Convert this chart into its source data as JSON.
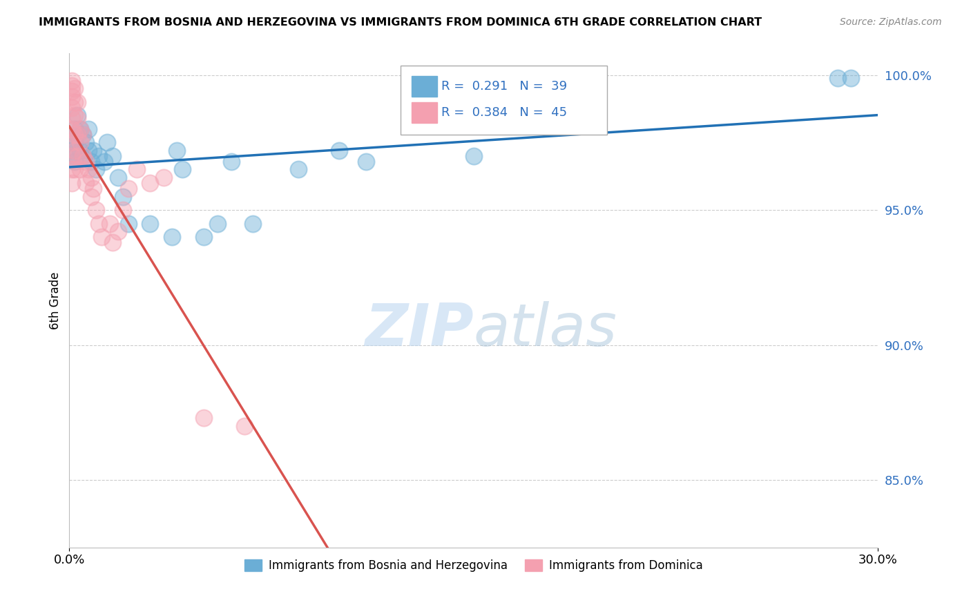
{
  "title": "IMMIGRANTS FROM BOSNIA AND HERZEGOVINA VS IMMIGRANTS FROM DOMINICA 6TH GRADE CORRELATION CHART",
  "source": "Source: ZipAtlas.com",
  "ylabel": "6th Grade",
  "xlim": [
    0.0,
    0.3
  ],
  "ylim": [
    0.825,
    1.008
  ],
  "xticks": [
    0.0,
    0.3
  ],
  "xticklabels": [
    "0.0%",
    "30.0%"
  ],
  "yticks": [
    0.85,
    0.9,
    0.95,
    1.0
  ],
  "yticklabels": [
    "85.0%",
    "90.0%",
    "95.0%",
    "100.0%"
  ],
  "color_blue": "#6BAED6",
  "color_pink": "#F4A0B0",
  "trend_color_blue": "#2171B5",
  "trend_color_pink": "#D9534F",
  "ytick_color": "#3070C0",
  "watermark_color": "#B8D4F0",
  "legend_label1": "Immigrants from Bosnia and Herzegovina",
  "legend_label2": "Immigrants from Dominica",
  "blue_x": [
    0.001,
    0.001,
    0.001,
    0.002,
    0.002,
    0.002,
    0.003,
    0.003,
    0.004,
    0.004,
    0.005,
    0.005,
    0.006,
    0.007,
    0.007,
    0.008,
    0.009,
    0.01,
    0.011,
    0.013,
    0.014,
    0.016,
    0.018,
    0.02,
    0.022,
    0.03,
    0.038,
    0.04,
    0.042,
    0.05,
    0.055,
    0.06,
    0.068,
    0.085,
    0.1,
    0.11,
    0.15,
    0.285,
    0.29
  ],
  "blue_y": [
    0.972,
    0.975,
    0.97,
    0.98,
    0.975,
    0.968,
    0.985,
    0.978,
    0.98,
    0.972,
    0.978,
    0.97,
    0.975,
    0.98,
    0.972,
    0.968,
    0.972,
    0.965,
    0.97,
    0.968,
    0.975,
    0.97,
    0.962,
    0.955,
    0.945,
    0.945,
    0.94,
    0.972,
    0.965,
    0.94,
    0.945,
    0.968,
    0.945,
    0.965,
    0.972,
    0.968,
    0.97,
    0.999,
    0.999
  ],
  "pink_x": [
    0.001,
    0.001,
    0.001,
    0.001,
    0.001,
    0.001,
    0.001,
    0.001,
    0.001,
    0.001,
    0.001,
    0.002,
    0.002,
    0.002,
    0.002,
    0.002,
    0.002,
    0.003,
    0.003,
    0.003,
    0.003,
    0.004,
    0.004,
    0.004,
    0.005,
    0.005,
    0.006,
    0.006,
    0.007,
    0.008,
    0.008,
    0.009,
    0.01,
    0.011,
    0.012,
    0.015,
    0.016,
    0.018,
    0.02,
    0.022,
    0.025,
    0.03,
    0.035,
    0.05,
    0.065
  ],
  "pink_y": [
    0.998,
    0.996,
    0.994,
    0.992,
    0.988,
    0.984,
    0.98,
    0.975,
    0.97,
    0.965,
    0.96,
    0.995,
    0.99,
    0.985,
    0.978,
    0.972,
    0.965,
    0.99,
    0.984,
    0.978,
    0.97,
    0.98,
    0.975,
    0.965,
    0.978,
    0.97,
    0.968,
    0.96,
    0.965,
    0.962,
    0.955,
    0.958,
    0.95,
    0.945,
    0.94,
    0.945,
    0.938,
    0.942,
    0.95,
    0.958,
    0.965,
    0.96,
    0.962,
    0.873,
    0.87
  ]
}
